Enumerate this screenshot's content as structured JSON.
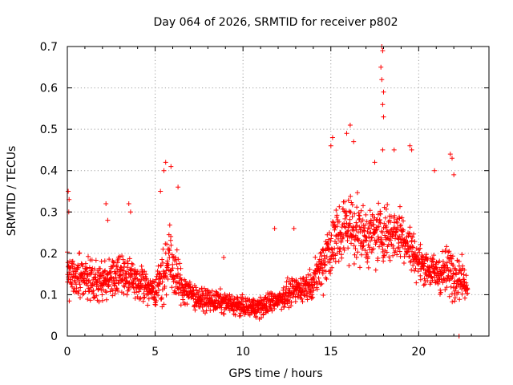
{
  "chart_data": {
    "type": "scatter",
    "title": "Day 064 of 2026, SRMTID for receiver p802",
    "xlabel": "GPS time / hours",
    "ylabel": "SRMTID / TECUs",
    "xlim": [
      0,
      24
    ],
    "ylim": [
      0,
      0.7
    ],
    "xticks": [
      0,
      5,
      10,
      15,
      20
    ],
    "yticks": [
      0,
      0.1,
      0.2,
      0.3,
      0.4,
      0.5,
      0.6,
      0.7
    ],
    "xtick_labels": [
      "0",
      "5",
      "10",
      "15",
      "20"
    ],
    "ytick_labels": [
      "0",
      "0.1",
      "0.2",
      "0.3",
      "0.4",
      "0.5",
      "0.6",
      "0.7"
    ],
    "grid": true,
    "marker": "+",
    "series_color": "#ff0000",
    "envelope": [
      {
        "t": 0.0,
        "base": 0.15,
        "spread": 0.07
      },
      {
        "t": 1.0,
        "base": 0.14,
        "spread": 0.06
      },
      {
        "t": 2.0,
        "base": 0.13,
        "spread": 0.06
      },
      {
        "t": 3.0,
        "base": 0.15,
        "spread": 0.06
      },
      {
        "t": 4.0,
        "base": 0.13,
        "spread": 0.05
      },
      {
        "t": 5.0,
        "base": 0.11,
        "spread": 0.04
      },
      {
        "t": 5.8,
        "base": 0.18,
        "spread": 0.1
      },
      {
        "t": 6.5,
        "base": 0.12,
        "spread": 0.05
      },
      {
        "t": 7.5,
        "base": 0.09,
        "spread": 0.03
      },
      {
        "t": 9.0,
        "base": 0.08,
        "spread": 0.03
      },
      {
        "t": 10.0,
        "base": 0.07,
        "spread": 0.025
      },
      {
        "t": 11.0,
        "base": 0.07,
        "spread": 0.03
      },
      {
        "t": 12.0,
        "base": 0.09,
        "spread": 0.03
      },
      {
        "t": 13.0,
        "base": 0.11,
        "spread": 0.04
      },
      {
        "t": 14.0,
        "base": 0.13,
        "spread": 0.04
      },
      {
        "t": 15.0,
        "base": 0.22,
        "spread": 0.1
      },
      {
        "t": 16.0,
        "base": 0.27,
        "spread": 0.1
      },
      {
        "t": 17.0,
        "base": 0.24,
        "spread": 0.08
      },
      {
        "t": 18.0,
        "base": 0.25,
        "spread": 0.09
      },
      {
        "t": 19.0,
        "base": 0.25,
        "spread": 0.08
      },
      {
        "t": 20.0,
        "base": 0.18,
        "spread": 0.05
      },
      {
        "t": 21.0,
        "base": 0.15,
        "spread": 0.05
      },
      {
        "t": 22.0,
        "base": 0.16,
        "spread": 0.08
      },
      {
        "t": 22.8,
        "base": 0.12,
        "spread": 0.03
      }
    ],
    "outliers": [
      {
        "x": 0.05,
        "y": 0.35
      },
      {
        "x": 0.1,
        "y": 0.33
      },
      {
        "x": 0.08,
        "y": 0.3
      },
      {
        "x": 2.2,
        "y": 0.32
      },
      {
        "x": 2.3,
        "y": 0.28
      },
      {
        "x": 3.5,
        "y": 0.32
      },
      {
        "x": 3.6,
        "y": 0.3
      },
      {
        "x": 5.6,
        "y": 0.42
      },
      {
        "x": 5.5,
        "y": 0.4
      },
      {
        "x": 5.9,
        "y": 0.41
      },
      {
        "x": 5.3,
        "y": 0.35
      },
      {
        "x": 6.3,
        "y": 0.36
      },
      {
        "x": 8.9,
        "y": 0.19
      },
      {
        "x": 11.8,
        "y": 0.26
      },
      {
        "x": 12.9,
        "y": 0.26
      },
      {
        "x": 15.0,
        "y": 0.46
      },
      {
        "x": 15.1,
        "y": 0.48
      },
      {
        "x": 15.9,
        "y": 0.49
      },
      {
        "x": 16.1,
        "y": 0.51
      },
      {
        "x": 16.3,
        "y": 0.47
      },
      {
        "x": 17.5,
        "y": 0.42
      },
      {
        "x": 17.9,
        "y": 0.7
      },
      {
        "x": 17.95,
        "y": 0.69
      },
      {
        "x": 17.85,
        "y": 0.65
      },
      {
        "x": 17.9,
        "y": 0.62
      },
      {
        "x": 18.0,
        "y": 0.59
      },
      {
        "x": 17.95,
        "y": 0.56
      },
      {
        "x": 18.0,
        "y": 0.53
      },
      {
        "x": 17.95,
        "y": 0.45
      },
      {
        "x": 18.6,
        "y": 0.45
      },
      {
        "x": 19.5,
        "y": 0.46
      },
      {
        "x": 19.6,
        "y": 0.45
      },
      {
        "x": 20.9,
        "y": 0.4
      },
      {
        "x": 21.8,
        "y": 0.44
      },
      {
        "x": 21.9,
        "y": 0.43
      },
      {
        "x": 22.0,
        "y": 0.39
      },
      {
        "x": 22.3,
        "y": 0.0
      }
    ]
  }
}
